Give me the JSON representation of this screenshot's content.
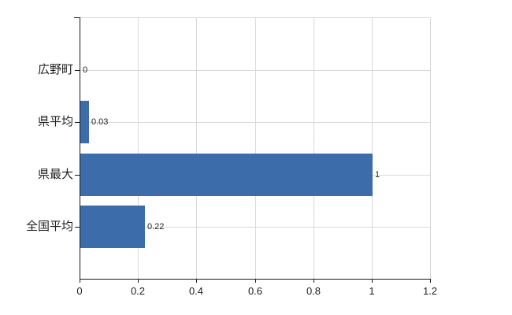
{
  "chart_data": {
    "type": "bar",
    "orientation": "horizontal",
    "title": "",
    "xlabel": "",
    "ylabel": "",
    "categories": [
      "広野町",
      "県平均",
      "県最大",
      "全国平均"
    ],
    "values": [
      0,
      0.03,
      1,
      0.22
    ],
    "value_labels": [
      "0",
      "0.03",
      "1",
      "0.22"
    ],
    "xlim": [
      0,
      1.2
    ],
    "x_ticks": [
      0,
      0.2,
      0.4,
      0.6,
      0.8,
      1,
      1.2
    ],
    "x_tick_labels": [
      "0",
      "0.2",
      "0.4",
      "0.6",
      "0.8",
      "1",
      "1.2"
    ],
    "grid": "on",
    "legend": "none",
    "colors": {
      "bar": "#3c6daa",
      "grid": "#d9d9d9",
      "axis": "#1a1a1a",
      "text": "#1f1f1f"
    }
  }
}
